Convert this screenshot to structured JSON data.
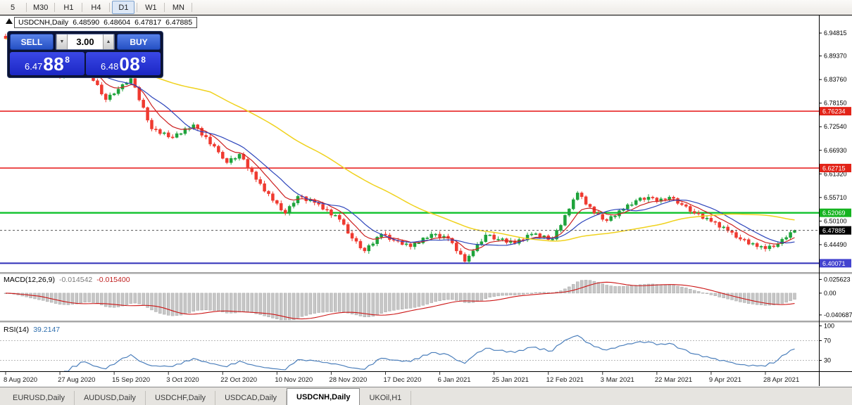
{
  "toolbar": {
    "timeframes": [
      "5",
      "M30",
      "H1",
      "H4",
      "D1",
      "W1",
      "MN"
    ],
    "active": "D1"
  },
  "chart": {
    "title": {
      "symbol": "USDCNH,Daily",
      "open": "6.48590",
      "high": "6.48604",
      "low": "6.47817",
      "close": "6.47885"
    },
    "trade_panel": {
      "sell_label": "SELL",
      "buy_label": "BUY",
      "volume": "3.00",
      "spin_down_icon": "▼",
      "spin_up_icon": "▲",
      "bid": {
        "prefix": "6.47",
        "pips": "88",
        "frac": "8"
      },
      "ask": {
        "prefix": "6.48",
        "pips": "08",
        "frac": "8"
      }
    }
  },
  "macd": {
    "label": "MACD(12,26,9)",
    "value_main": "-0.014542",
    "value_signal": "-0.015400"
  },
  "rsi": {
    "label": "RSI(14)",
    "value": "39.2147"
  },
  "tabs": {
    "items": [
      "EURUSD,Daily",
      "AUDUSD,Daily",
      "USDCHF,Daily",
      "USDCAD,Daily",
      "USDCNH,Daily",
      "UKOil,H1"
    ],
    "active_index": 4
  },
  "colors": {
    "candle_up": "#1ea33b",
    "candle_down": "#ef3a30",
    "axis_text": "#000000",
    "date_text": "#1a1a1a"
  },
  "chart_data": {
    "type": "candlestick",
    "symbol": "USDCNH",
    "timeframe": "Daily",
    "y_axis": {
      "min": 6.3813,
      "max": 6.9833,
      "ticks": [
        "6.94815",
        "6.89370",
        "6.83760",
        "6.78150",
        "6.72540",
        "6.66930",
        "6.61320",
        "6.55710",
        "6.50100",
        "6.44490"
      ]
    },
    "closes": [
      6.935,
      6.929,
      6.915,
      6.911,
      6.9,
      6.898,
      6.887,
      6.888,
      6.88,
      6.876,
      6.863,
      6.862,
      6.849,
      6.845,
      6.852,
      6.85,
      6.861,
      6.859,
      6.869,
      6.87,
      6.857,
      6.835,
      6.825,
      6.803,
      6.79,
      6.801,
      6.804,
      6.815,
      6.826,
      6.829,
      6.84,
      6.819,
      6.789,
      6.771,
      6.741,
      6.72,
      6.719,
      6.709,
      6.711,
      6.701,
      6.7,
      6.709,
      6.709,
      6.721,
      6.721,
      6.73,
      6.722,
      6.705,
      6.701,
      6.684,
      6.679,
      6.665,
      6.65,
      6.64,
      6.65,
      6.65,
      6.66,
      6.648,
      6.627,
      6.618,
      6.6,
      6.59,
      6.572,
      6.566,
      6.55,
      6.543,
      6.527,
      6.52,
      6.536,
      6.544,
      6.56,
      6.559,
      6.549,
      6.552,
      6.545,
      6.541,
      6.529,
      6.528,
      6.515,
      6.515,
      6.505,
      6.493,
      6.472,
      6.46,
      6.453,
      6.437,
      6.43,
      6.443,
      6.447,
      6.463,
      6.47,
      6.468,
      6.457,
      6.455,
      6.454,
      6.445,
      6.447,
      6.44,
      6.449,
      6.449,
      6.461,
      6.461,
      6.47,
      6.47,
      6.462,
      6.465,
      6.46,
      6.449,
      6.43,
      6.422,
      6.405,
      6.418,
      6.43,
      6.446,
      6.452,
      6.468,
      6.468,
      6.458,
      6.458,
      6.459,
      6.45,
      6.454,
      6.448,
      6.457,
      6.456,
      6.468,
      6.47,
      6.471,
      6.462,
      6.466,
      6.457,
      6.458,
      6.479,
      6.491,
      6.515,
      6.53,
      6.552,
      6.568,
      6.559,
      6.541,
      6.535,
      6.52,
      6.517,
      6.505,
      6.502,
      6.512,
      6.513,
      6.526,
      6.53,
      6.54,
      6.54,
      6.55,
      6.556,
      6.552,
      6.558,
      6.556,
      6.548,
      6.554,
      6.552,
      6.558,
      6.555,
      6.543,
      6.54,
      6.536,
      6.524,
      6.52,
      6.518,
      6.507,
      6.508,
      6.5,
      6.498,
      6.486,
      6.487,
      6.478,
      6.474,
      6.462,
      6.458,
      6.457,
      6.446,
      6.448,
      6.44,
      6.441,
      6.435,
      6.442,
      6.44,
      6.447,
      6.458,
      6.462,
      6.474,
      6.4789
    ],
    "date_labels": [
      "8 Aug 2020",
      "27 Aug 2020",
      "15 Sep 2020",
      "3 Oct 2020",
      "22 Oct 2020",
      "10 Nov 2020",
      "28 Nov 2020",
      "17 Dec 2020",
      "6 Jan 2021",
      "25 Jan 2021",
      "12 Feb 2021",
      "3 Mar 2021",
      "22 Mar 2021",
      "9 Apr 2021",
      "28 Apr 2021"
    ],
    "date_index_step": 13,
    "levels": [
      {
        "price": 6.76234,
        "label": "6.76234",
        "color": "#e51414",
        "width": 1.5,
        "badge": "#e22318"
      },
      {
        "price": 6.62715,
        "label": "6.62715",
        "color": "#e51414",
        "width": 1.5,
        "badge": "#e22318"
      },
      {
        "price": 6.52069,
        "label": "6.52069",
        "color": "#0fc22b",
        "width": 2.4,
        "badge": "#14b31f"
      },
      {
        "price": 6.40071,
        "label": "6.40071",
        "color": "#2e2eb8",
        "width": 2.0,
        "badge": "#4343cf"
      }
    ],
    "current_price": 6.47885,
    "current_price_label": "6.47885",
    "moving_averages": [
      {
        "name": "ma-fast",
        "period": 8,
        "method": "ema",
        "color": "#cc2020",
        "width": 1.2
      },
      {
        "name": "ma-medium",
        "period": 13,
        "method": "sma",
        "color": "#2c44bb",
        "width": 1.2
      },
      {
        "name": "ma-slow",
        "period": 50,
        "method": "sma",
        "color": "#f0d21e",
        "width": 1.5
      }
    ],
    "macd": {
      "params": [
        12,
        26,
        9
      ],
      "range": [
        -0.05,
        0.034
      ],
      "ticks": [
        "0.025623",
        "0.00",
        "-0.040687"
      ],
      "histogram_color": "#c6c6c6",
      "signal_color": "#cc1616"
    },
    "rsi": {
      "period": 14,
      "range": [
        8,
        102
      ],
      "levels": [
        70,
        30
      ],
      "ticks": [
        "100",
        "70",
        "30"
      ],
      "line_color": "#4a7ebb"
    }
  }
}
